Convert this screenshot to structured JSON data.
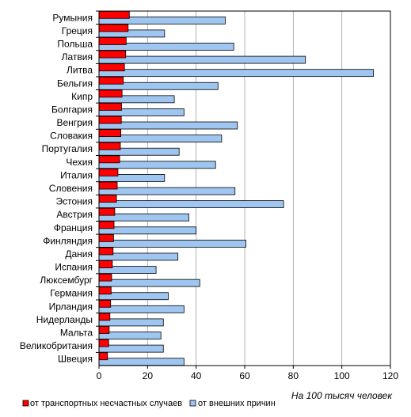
{
  "chart_data": {
    "type": "bar",
    "orientation": "horizontal",
    "categories": [
      "Румыния",
      "Греция",
      "Польша",
      "Латвия",
      "Литва",
      "Бельгия",
      "Кипр",
      "Болгария",
      "Венгрия",
      "Словакия",
      "Португалия",
      "Чехия",
      "Италия",
      "Словения",
      "Эстония",
      "Австрия",
      "Франция",
      "Финляндия",
      "Дания",
      "Испания",
      "Люксембург",
      "Германия",
      "Ирландия",
      "Нидерланды",
      "Мальта",
      "Великобритания",
      "Швеция"
    ],
    "series": [
      {
        "name": "от транспортных несчастных случаев",
        "color": "#ff0000",
        "values": [
          12.5,
          12,
          11.2,
          11,
          10.5,
          10,
          9.5,
          9.3,
          9.2,
          9,
          8.8,
          8.5,
          7.8,
          7.5,
          7.2,
          6.5,
          6.2,
          6.0,
          5.8,
          5.5,
          5.2,
          5.0,
          4.8,
          4.5,
          4.2,
          4.0,
          3.5
        ]
      },
      {
        "name": "от внешних причин",
        "color": "#9fc6f0",
        "values": [
          52,
          27,
          55.5,
          85,
          113,
          49,
          31,
          35,
          57,
          50.5,
          33,
          48,
          27,
          56,
          76,
          37,
          40,
          60.5,
          32.5,
          23.5,
          41.5,
          28.5,
          35,
          26.5,
          25.5,
          26.5,
          35
        ]
      }
    ],
    "xlim": [
      0,
      120
    ],
    "xticks": [
      0,
      20,
      40,
      60,
      80,
      100,
      120
    ],
    "xlabel": "На 100 тысяч человек",
    "grid": true,
    "legend_position": "bottom"
  }
}
